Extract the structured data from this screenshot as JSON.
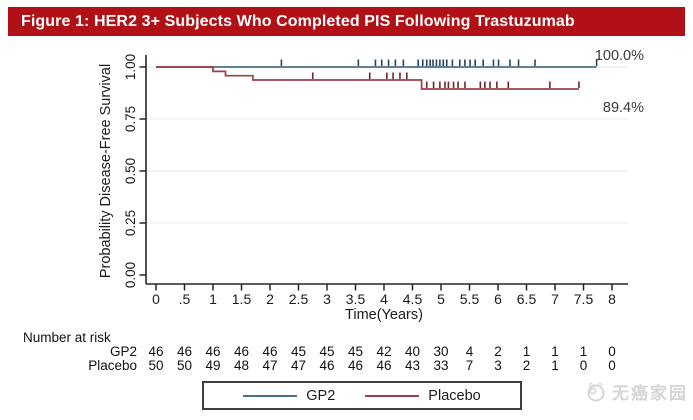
{
  "header": {
    "title": "Figure 1: HER2 3+ Subjects Who Completed PIS Following Trastuzumab"
  },
  "colors": {
    "header_bg": "#b11116",
    "header_text": "#ffffff",
    "grid": "#e8eff1",
    "axis": "#262626",
    "text": "#1c1c1c",
    "annotation": "#3a3a3a",
    "watermark": "#d6d6d6"
  },
  "chart_data": {
    "type": "line",
    "subtype": "kaplan-meier-step",
    "title": "Figure 1: HER2 3+ Subjects Who Completed PIS Following Trastuzumab",
    "xlabel": "Time(Years)",
    "ylabel": "Probability Disease-Free Survival",
    "xlim": [
      0,
      8
    ],
    "ylim": [
      0,
      1
    ],
    "grid": "horizontal",
    "grid_values": [
      0.25,
      0.5,
      0.75,
      1.0
    ],
    "xticks": [
      {
        "t": 0,
        "label": "0"
      },
      {
        "t": 0.5,
        "label": ".5"
      },
      {
        "t": 1,
        "label": "1"
      },
      {
        "t": 1.5,
        "label": "1.5"
      },
      {
        "t": 2,
        "label": "2"
      },
      {
        "t": 2.5,
        "label": "2.5"
      },
      {
        "t": 3,
        "label": "3"
      },
      {
        "t": 3.5,
        "label": "3.5"
      },
      {
        "t": 4,
        "label": "4"
      },
      {
        "t": 4.5,
        "label": "4.5"
      },
      {
        "t": 5,
        "label": "5"
      },
      {
        "t": 5.5,
        "label": "5.5"
      },
      {
        "t": 6,
        "label": "6"
      },
      {
        "t": 6.5,
        "label": "6.5"
      },
      {
        "t": 7,
        "label": "7"
      },
      {
        "t": 7.5,
        "label": "7.5"
      },
      {
        "t": 8,
        "label": "8"
      }
    ],
    "yticks": [
      {
        "v": 0,
        "label": "0.00"
      },
      {
        "v": 0.25,
        "label": "0.25"
      },
      {
        "v": 0.5,
        "label": "0.50"
      },
      {
        "v": 0.75,
        "label": "0.75"
      },
      {
        "v": 1,
        "label": "1.00"
      }
    ],
    "series": [
      {
        "name": "GP2",
        "color": "#48708a",
        "censor_color": "#24455a",
        "end_label": "100.0%",
        "final_survival": 1.0,
        "points": [
          [
            0,
            1
          ],
          [
            7.73,
            1
          ]
        ],
        "censor_times": [
          2.2,
          3.55,
          3.85,
          3.96,
          4.08,
          4.2,
          4.34,
          4.6,
          4.68,
          4.75,
          4.81,
          4.86,
          4.92,
          4.98,
          5.04,
          5.1,
          5.2,
          5.33,
          5.42,
          5.51,
          5.6,
          5.74,
          5.92,
          6.01,
          6.21,
          6.36,
          6.65,
          7.73
        ]
      },
      {
        "name": "Placebo",
        "color": "#9e3e47",
        "censor_color": "#6e262e",
        "end_label": "89.4%",
        "final_survival": 0.894,
        "points": [
          [
            0,
            1
          ],
          [
            1.0,
            1
          ],
          [
            1.0,
            0.979
          ],
          [
            1.22,
            0.979
          ],
          [
            1.22,
            0.958
          ],
          [
            1.7,
            0.958
          ],
          [
            1.7,
            0.9375
          ],
          [
            4.66,
            0.9375
          ],
          [
            4.66,
            0.894
          ],
          [
            7.42,
            0.894
          ]
        ],
        "censor_times": [
          2.75,
          3.75,
          4.05,
          4.16,
          4.28,
          4.4,
          4.75,
          4.87,
          4.98,
          5.07,
          5.13,
          5.22,
          5.3,
          5.42,
          5.69,
          5.77,
          5.86,
          5.98,
          6.18,
          6.91,
          7.42
        ]
      }
    ],
    "risk_table": {
      "title": "Number at risk",
      "times": [
        0,
        0.5,
        1,
        1.5,
        2,
        2.5,
        3,
        3.5,
        4,
        4.5,
        5,
        5.5,
        6,
        6.5,
        7,
        7.5,
        8
      ],
      "rows": [
        {
          "label": "GP2",
          "values": [
            46,
            46,
            46,
            46,
            46,
            45,
            45,
            45,
            42,
            40,
            30,
            4,
            2,
            1,
            1,
            1,
            0
          ]
        },
        {
          "label": "Placebo",
          "values": [
            50,
            50,
            49,
            48,
            47,
            47,
            46,
            46,
            46,
            43,
            33,
            7,
            3,
            2,
            1,
            0,
            0
          ]
        }
      ]
    },
    "legend": {
      "position": "bottom",
      "entries": [
        "GP2",
        "Placebo"
      ]
    }
  },
  "watermark": {
    "text": "无癌家园"
  }
}
